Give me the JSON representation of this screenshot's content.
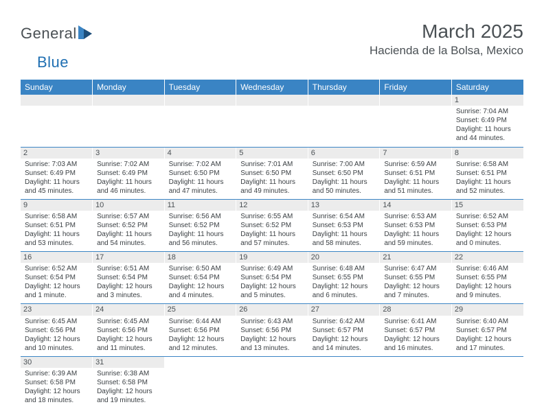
{
  "logo": {
    "text1": "General",
    "text2": "Blue"
  },
  "title": "March 2025",
  "location": "Hacienda de la Bolsa, Mexico",
  "header_bg": "#3a84c4",
  "day_headers": [
    "Sunday",
    "Monday",
    "Tuesday",
    "Wednesday",
    "Thursday",
    "Friday",
    "Saturday"
  ],
  "weeks": [
    [
      null,
      null,
      null,
      null,
      null,
      null,
      {
        "n": "1",
        "sr": "Sunrise: 7:04 AM",
        "ss": "Sunset: 6:49 PM",
        "dl": "Daylight: 11 hours and 44 minutes."
      }
    ],
    [
      {
        "n": "2",
        "sr": "Sunrise: 7:03 AM",
        "ss": "Sunset: 6:49 PM",
        "dl": "Daylight: 11 hours and 45 minutes."
      },
      {
        "n": "3",
        "sr": "Sunrise: 7:02 AM",
        "ss": "Sunset: 6:49 PM",
        "dl": "Daylight: 11 hours and 46 minutes."
      },
      {
        "n": "4",
        "sr": "Sunrise: 7:02 AM",
        "ss": "Sunset: 6:50 PM",
        "dl": "Daylight: 11 hours and 47 minutes."
      },
      {
        "n": "5",
        "sr": "Sunrise: 7:01 AM",
        "ss": "Sunset: 6:50 PM",
        "dl": "Daylight: 11 hours and 49 minutes."
      },
      {
        "n": "6",
        "sr": "Sunrise: 7:00 AM",
        "ss": "Sunset: 6:50 PM",
        "dl": "Daylight: 11 hours and 50 minutes."
      },
      {
        "n": "7",
        "sr": "Sunrise: 6:59 AM",
        "ss": "Sunset: 6:51 PM",
        "dl": "Daylight: 11 hours and 51 minutes."
      },
      {
        "n": "8",
        "sr": "Sunrise: 6:58 AM",
        "ss": "Sunset: 6:51 PM",
        "dl": "Daylight: 11 hours and 52 minutes."
      }
    ],
    [
      {
        "n": "9",
        "sr": "Sunrise: 6:58 AM",
        "ss": "Sunset: 6:51 PM",
        "dl": "Daylight: 11 hours and 53 minutes."
      },
      {
        "n": "10",
        "sr": "Sunrise: 6:57 AM",
        "ss": "Sunset: 6:52 PM",
        "dl": "Daylight: 11 hours and 54 minutes."
      },
      {
        "n": "11",
        "sr": "Sunrise: 6:56 AM",
        "ss": "Sunset: 6:52 PM",
        "dl": "Daylight: 11 hours and 56 minutes."
      },
      {
        "n": "12",
        "sr": "Sunrise: 6:55 AM",
        "ss": "Sunset: 6:52 PM",
        "dl": "Daylight: 11 hours and 57 minutes."
      },
      {
        "n": "13",
        "sr": "Sunrise: 6:54 AM",
        "ss": "Sunset: 6:53 PM",
        "dl": "Daylight: 11 hours and 58 minutes."
      },
      {
        "n": "14",
        "sr": "Sunrise: 6:53 AM",
        "ss": "Sunset: 6:53 PM",
        "dl": "Daylight: 11 hours and 59 minutes."
      },
      {
        "n": "15",
        "sr": "Sunrise: 6:52 AM",
        "ss": "Sunset: 6:53 PM",
        "dl": "Daylight: 12 hours and 0 minutes."
      }
    ],
    [
      {
        "n": "16",
        "sr": "Sunrise: 6:52 AM",
        "ss": "Sunset: 6:54 PM",
        "dl": "Daylight: 12 hours and 1 minute."
      },
      {
        "n": "17",
        "sr": "Sunrise: 6:51 AM",
        "ss": "Sunset: 6:54 PM",
        "dl": "Daylight: 12 hours and 3 minutes."
      },
      {
        "n": "18",
        "sr": "Sunrise: 6:50 AM",
        "ss": "Sunset: 6:54 PM",
        "dl": "Daylight: 12 hours and 4 minutes."
      },
      {
        "n": "19",
        "sr": "Sunrise: 6:49 AM",
        "ss": "Sunset: 6:54 PM",
        "dl": "Daylight: 12 hours and 5 minutes."
      },
      {
        "n": "20",
        "sr": "Sunrise: 6:48 AM",
        "ss": "Sunset: 6:55 PM",
        "dl": "Daylight: 12 hours and 6 minutes."
      },
      {
        "n": "21",
        "sr": "Sunrise: 6:47 AM",
        "ss": "Sunset: 6:55 PM",
        "dl": "Daylight: 12 hours and 7 minutes."
      },
      {
        "n": "22",
        "sr": "Sunrise: 6:46 AM",
        "ss": "Sunset: 6:55 PM",
        "dl": "Daylight: 12 hours and 9 minutes."
      }
    ],
    [
      {
        "n": "23",
        "sr": "Sunrise: 6:45 AM",
        "ss": "Sunset: 6:56 PM",
        "dl": "Daylight: 12 hours and 10 minutes."
      },
      {
        "n": "24",
        "sr": "Sunrise: 6:45 AM",
        "ss": "Sunset: 6:56 PM",
        "dl": "Daylight: 12 hours and 11 minutes."
      },
      {
        "n": "25",
        "sr": "Sunrise: 6:44 AM",
        "ss": "Sunset: 6:56 PM",
        "dl": "Daylight: 12 hours and 12 minutes."
      },
      {
        "n": "26",
        "sr": "Sunrise: 6:43 AM",
        "ss": "Sunset: 6:56 PM",
        "dl": "Daylight: 12 hours and 13 minutes."
      },
      {
        "n": "27",
        "sr": "Sunrise: 6:42 AM",
        "ss": "Sunset: 6:57 PM",
        "dl": "Daylight: 12 hours and 14 minutes."
      },
      {
        "n": "28",
        "sr": "Sunrise: 6:41 AM",
        "ss": "Sunset: 6:57 PM",
        "dl": "Daylight: 12 hours and 16 minutes."
      },
      {
        "n": "29",
        "sr": "Sunrise: 6:40 AM",
        "ss": "Sunset: 6:57 PM",
        "dl": "Daylight: 12 hours and 17 minutes."
      }
    ],
    [
      {
        "n": "30",
        "sr": "Sunrise: 6:39 AM",
        "ss": "Sunset: 6:58 PM",
        "dl": "Daylight: 12 hours and 18 minutes."
      },
      {
        "n": "31",
        "sr": "Sunrise: 6:38 AM",
        "ss": "Sunset: 6:58 PM",
        "dl": "Daylight: 12 hours and 19 minutes."
      },
      null,
      null,
      null,
      null,
      null
    ]
  ]
}
